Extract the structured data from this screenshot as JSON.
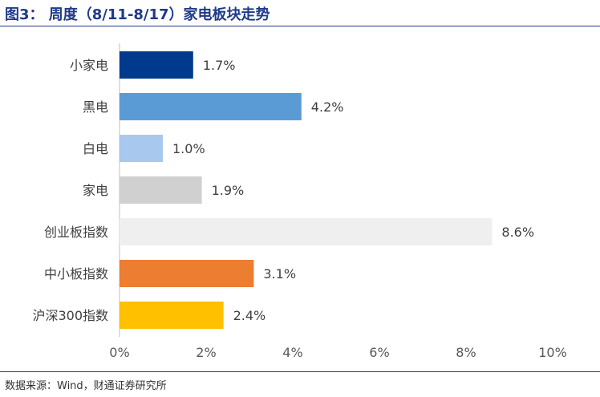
{
  "header": {
    "title": "图3： 周度（8/11-8/17）家电板块走势"
  },
  "footer": {
    "source": "数据来源：Wind，财通证券研究所"
  },
  "chart_data": {
    "type": "bar",
    "orientation": "horizontal",
    "categories": [
      "小家电",
      "黑电",
      "白电",
      "家电",
      "创业板指数",
      "中小板指数",
      "沪深300指数"
    ],
    "values": [
      1.7,
      4.2,
      1.0,
      1.9,
      8.6,
      3.1,
      2.4
    ],
    "value_labels": [
      "1.7%",
      "4.2%",
      "1.0%",
      "1.9%",
      "8.6%",
      "3.1%",
      "2.4%"
    ],
    "colors": [
      "#003a8c",
      "#5b9bd5",
      "#a9c8ee",
      "#d0d0d0",
      "#efefef",
      "#ed7d31",
      "#ffc000"
    ],
    "xlim": [
      0,
      10
    ],
    "x_ticks": [
      0,
      2,
      4,
      6,
      8,
      10
    ],
    "x_tick_labels": [
      "0%",
      "2%",
      "4%",
      "6%",
      "8%",
      "10%"
    ],
    "grid": false,
    "title": "图3： 周度（8/11-8/17）家电板块走势",
    "xlabel": "",
    "ylabel": ""
  }
}
